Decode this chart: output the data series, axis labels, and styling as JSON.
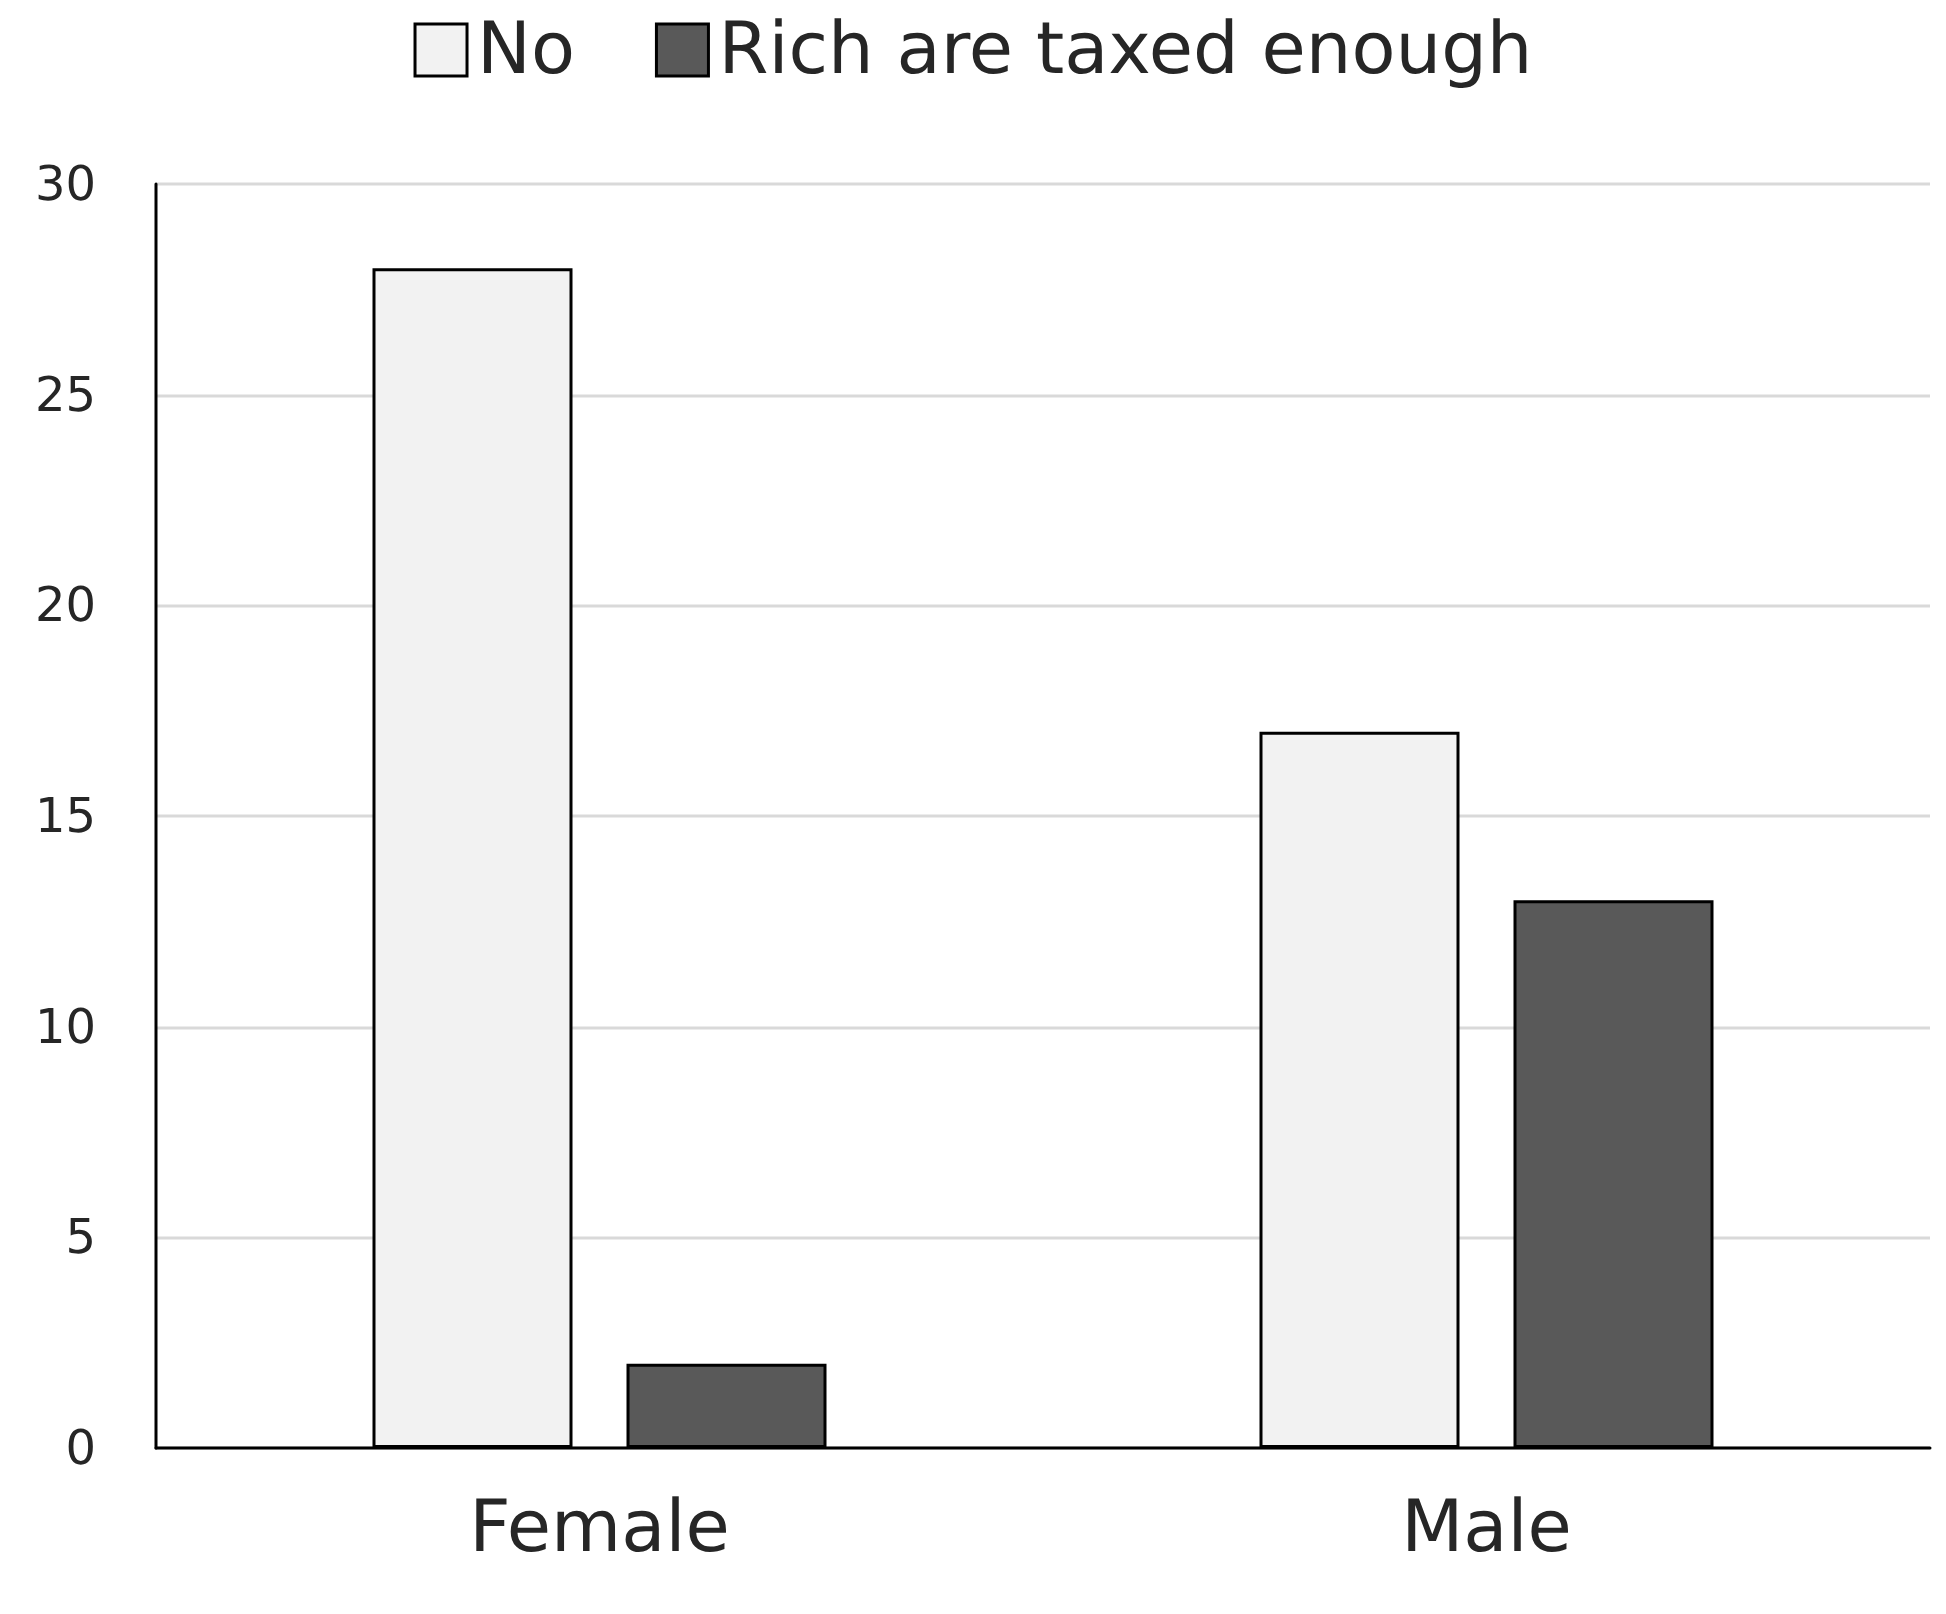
{
  "chart_data": {
    "type": "bar",
    "categories": [
      "Female",
      "Male"
    ],
    "series": [
      {
        "name": "No",
        "color": "#f2f2f2",
        "values": [
          28,
          17
        ]
      },
      {
        "name": "Rich are taxed enough",
        "color": "#595959",
        "values": [
          2,
          13
        ]
      }
    ],
    "ylim": [
      0,
      30
    ],
    "yticks": [
      0,
      5,
      10,
      15,
      20,
      25,
      30
    ],
    "grid": "y",
    "legend": "top"
  }
}
